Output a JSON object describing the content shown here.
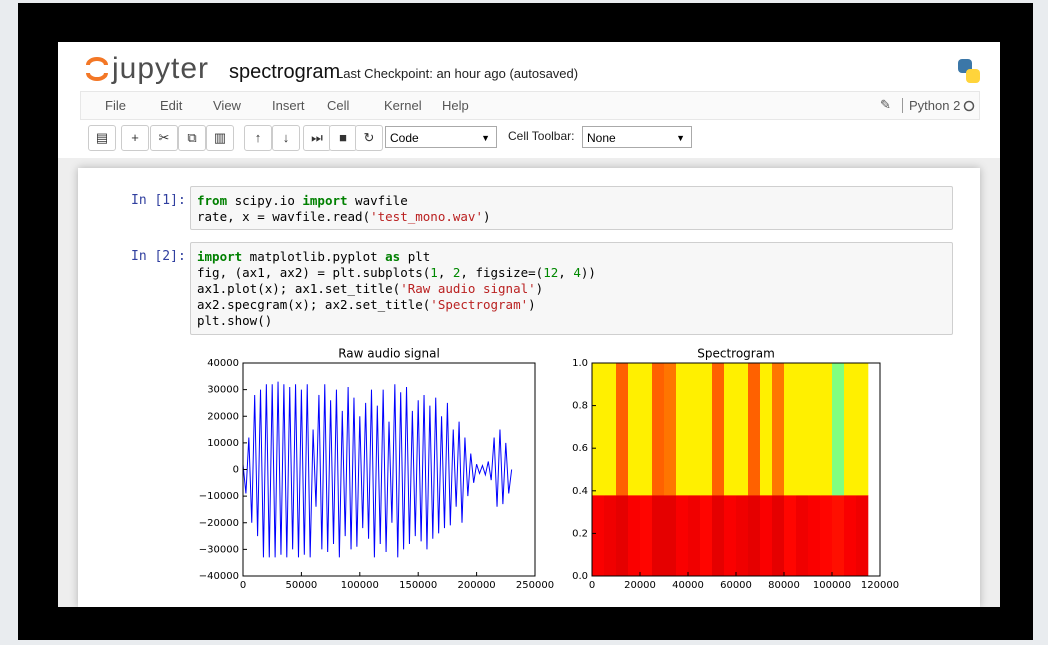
{
  "header": {
    "logo": "jupyter",
    "notebook_name": "spectrogram",
    "checkpoint": "Last Checkpoint: an hour ago (autosaved)"
  },
  "menu": [
    "File",
    "Edit",
    "View",
    "Insert",
    "Cell",
    "Kernel",
    "Help"
  ],
  "kernel": "Python 2",
  "toolbar": {
    "cell_type": "Code",
    "cell_toolbar_label": "Cell Toolbar:",
    "cell_toolbar_value": "None"
  },
  "cells": [
    {
      "prompt": "In [1]:",
      "code": [
        [
          {
            "text": "from",
            "color": "#008000"
          },
          {
            "text": " scipy.io "
          },
          {
            "text": "import",
            "color": "#008000"
          },
          {
            "text": " wavfile"
          }
        ],
        [
          {
            "text": "rate, x = wavfile.read("
          },
          {
            "text": "'test_mono.wav'",
            "color": "#ba2121"
          },
          {
            "text": ")"
          }
        ]
      ]
    },
    {
      "prompt": "In [2]:",
      "code": [
        [
          {
            "text": "import",
            "color": "#008000"
          },
          {
            "text": " matplotlib.pyplot "
          },
          {
            "text": "as",
            "color": "#008000"
          },
          {
            "text": " plt"
          }
        ],
        [
          {
            "text": "fig, (ax1, ax2) = plt.subplots("
          },
          {
            "text": "1",
            "color": "#008800"
          },
          {
            "text": ", "
          },
          {
            "text": "2",
            "color": "#008800"
          },
          {
            "text": ", figsize=("
          },
          {
            "text": "12",
            "color": "#008800"
          },
          {
            "text": ", "
          },
          {
            "text": "4",
            "color": "#008800"
          },
          {
            "text": "))"
          }
        ],
        [
          {
            "text": "ax1.plot(x); ax1.set_title("
          },
          {
            "text": "'Raw audio signal'",
            "color": "#ba2121"
          },
          {
            "text": ")"
          }
        ],
        [
          {
            "text": "ax2.specgram(x); ax2.set_title("
          },
          {
            "text": "'Spectrogram'",
            "color": "#ba2121"
          },
          {
            "text": ")"
          }
        ],
        [
          {
            "text": "plt.show()"
          }
        ]
      ]
    }
  ],
  "chart_data": [
    {
      "type": "line",
      "title": "Raw audio signal",
      "color": "#0000ff",
      "x": [
        0,
        2500,
        5000,
        7500,
        10000,
        12500,
        15000,
        17500,
        20000,
        22500,
        25000,
        27500,
        30000,
        32500,
        35000,
        37500,
        40000,
        42500,
        45000,
        47500,
        50000,
        52500,
        55000,
        57500,
        60000,
        62500,
        65000,
        67500,
        70000,
        72500,
        75000,
        77500,
        80000,
        82500,
        85000,
        87500,
        90000,
        92500,
        95000,
        97500,
        100000,
        102500,
        105000,
        107500,
        110000,
        112500,
        115000,
        117500,
        120000,
        122500,
        125000,
        127500,
        130000,
        132500,
        135000,
        137500,
        140000,
        142500,
        145000,
        147500,
        150000,
        152500,
        155000,
        157500,
        160000,
        162500,
        165000,
        167500,
        170000,
        172500,
        175000,
        177500,
        180000,
        182500,
        185000,
        187500,
        190000,
        192500,
        195000,
        197500,
        200000,
        202500,
        205000,
        207500,
        210000,
        212500,
        215000,
        217500,
        220000,
        222500,
        225000,
        227500,
        230000
      ],
      "values": [
        2000,
        -9000,
        12000,
        -20000,
        28000,
        -25000,
        30000,
        -33000,
        32000,
        -33000,
        32000,
        -33000,
        33000,
        -32000,
        32000,
        -33000,
        31000,
        -30000,
        32000,
        -33000,
        30000,
        -32000,
        32000,
        -33000,
        15000,
        -14000,
        28000,
        -30000,
        32000,
        -31000,
        26000,
        -28000,
        30000,
        -33000,
        22000,
        -25000,
        31000,
        -30000,
        27000,
        -29000,
        20000,
        -22000,
        25000,
        -26000,
        30000,
        -33000,
        24000,
        -28000,
        30000,
        -31000,
        18000,
        -20000,
        32000,
        -33000,
        29000,
        -30000,
        31000,
        -28000,
        22000,
        -25000,
        26000,
        -27000,
        28000,
        -30000,
        24000,
        -26000,
        27000,
        -24000,
        20000,
        -22000,
        25000,
        -21000,
        15000,
        -14000,
        18000,
        -20000,
        12000,
        -10000,
        6000,
        -5000,
        2000,
        -1500,
        1500,
        -2000,
        3000,
        -4000,
        12000,
        -14000,
        15000,
        -13000,
        10000,
        -9000,
        0
      ],
      "xlim": [
        0,
        250000
      ],
      "xticks": [
        0,
        50000,
        100000,
        150000,
        200000,
        250000
      ],
      "ylim": [
        -40000,
        40000
      ],
      "yticks": [
        {
          "value": -40000,
          "label": "−40000"
        },
        {
          "value": -30000,
          "label": "−30000"
        },
        {
          "value": -20000,
          "label": "−20000"
        },
        {
          "value": -10000,
          "label": "−10000"
        },
        0,
        10000,
        20000,
        30000,
        40000
      ]
    },
    {
      "type": "heatmap",
      "title": "Spectrogram",
      "colormap": "jet",
      "x_edges": [
        0,
        5000,
        10000,
        15000,
        20000,
        25000,
        30000,
        35000,
        40000,
        45000,
        50000,
        55000,
        60000,
        65000,
        70000,
        75000,
        80000,
        85000,
        90000,
        95000,
        100000,
        105000,
        110000,
        115000
      ],
      "y_edges": [
        0,
        0.38,
        1.0
      ],
      "z": [
        [
          0.88,
          0.89,
          0.9,
          0.88,
          0.87,
          0.9,
          0.9,
          0.88,
          0.89,
          0.87,
          0.9,
          0.88,
          0.89,
          0.9,
          0.88,
          0.9,
          0.87,
          0.89,
          0.88,
          0.87,
          0.86,
          0.88,
          0.89
        ],
        [
          0.64,
          0.64,
          0.78,
          0.64,
          0.64,
          0.78,
          0.76,
          0.64,
          0.64,
          0.64,
          0.78,
          0.64,
          0.64,
          0.78,
          0.64,
          0.76,
          0.64,
          0.64,
          0.64,
          0.64,
          0.5,
          0.64,
          0.64
        ]
      ],
      "xlim": [
        0,
        120000
      ],
      "xticks": [
        0,
        20000,
        40000,
        60000,
        80000,
        100000,
        120000
      ],
      "ylim": [
        0,
        1
      ],
      "yticks": [
        {
          "value": 0,
          "label": "0.0"
        },
        0.2,
        0.4,
        0.6,
        0.8,
        {
          "value": 1,
          "label": "1.0"
        }
      ]
    }
  ]
}
